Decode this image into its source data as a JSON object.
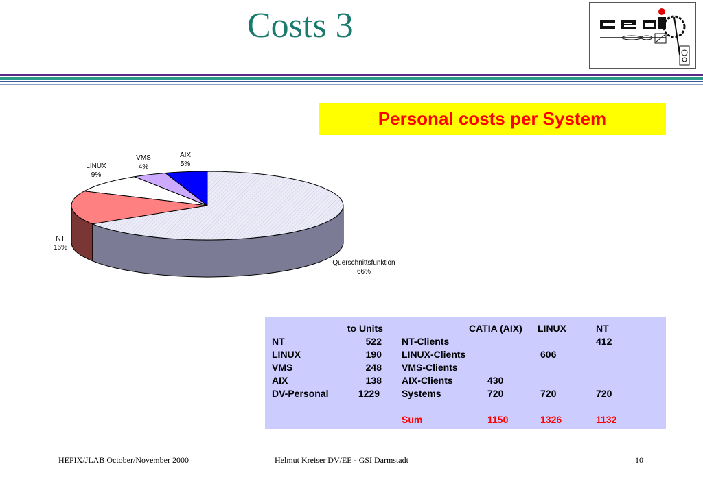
{
  "slide": {
    "title": "Costs 3",
    "subtitle": "Personal costs per System"
  },
  "logo": {
    "text": "GSI"
  },
  "colors": {
    "title": "#1a7a6e",
    "rule_top": "#5a2a8a",
    "rule_mid": "#2a9a8a",
    "subtitle_bg": "#ffff00",
    "subtitle_text": "#ff0000",
    "table_bg": "#ccccff"
  },
  "chart_data": {
    "type": "pie",
    "title": "",
    "slices": [
      {
        "label": "Querschnittsfunktion",
        "pct_label": "66%",
        "value": 66,
        "color": "#e4e4f6",
        "side": "#7b7b96"
      },
      {
        "label": "NT",
        "pct_label": "16%",
        "value": 16,
        "color": "#ff8080",
        "side": "#7a3535"
      },
      {
        "label": "LINUX",
        "pct_label": "9%",
        "value": 9,
        "color": "#ffffff",
        "side": "#999999"
      },
      {
        "label": "VMS",
        "pct_label": "4%",
        "value": 4,
        "color": "#ccaaff",
        "side": "#6a55aa"
      },
      {
        "label": "AIX",
        "pct_label": "5%",
        "value": 5,
        "color": "#0000ff",
        "side": "#000088"
      }
    ]
  },
  "table": {
    "header": {
      "to_units": "to Units",
      "catia": "CATIA (AIX)",
      "linux": "LINUX",
      "nt": "NT"
    },
    "left_rows": [
      {
        "name": "NT",
        "value": "522"
      },
      {
        "name": "LINUX",
        "value": "190"
      },
      {
        "name": "VMS",
        "value": "248"
      },
      {
        "name": "AIX",
        "value": "138"
      },
      {
        "name": "DV-Personal",
        "value": "1229"
      }
    ],
    "right_rows": [
      {
        "name": "NT-Clients",
        "catia": "",
        "linux": "",
        "nt": "412"
      },
      {
        "name": "LINUX-Clients",
        "catia": "",
        "linux": "606",
        "nt": ""
      },
      {
        "name": "VMS-Clients",
        "catia": "",
        "linux": "",
        "nt": ""
      },
      {
        "name": "AIX-Clients",
        "catia": "430",
        "linux": "",
        "nt": ""
      },
      {
        "name": "Systems",
        "catia": "720",
        "linux": "720",
        "nt": "720"
      }
    ],
    "sum": {
      "name": "Sum",
      "catia": "1150",
      "linux": "1326",
      "nt": "1132"
    }
  },
  "footer": {
    "left": "HEPIX/JLAB  October/November 2000",
    "center": "Helmut  Kreiser  DV/EE - GSI Darmstadt",
    "page": "10"
  }
}
